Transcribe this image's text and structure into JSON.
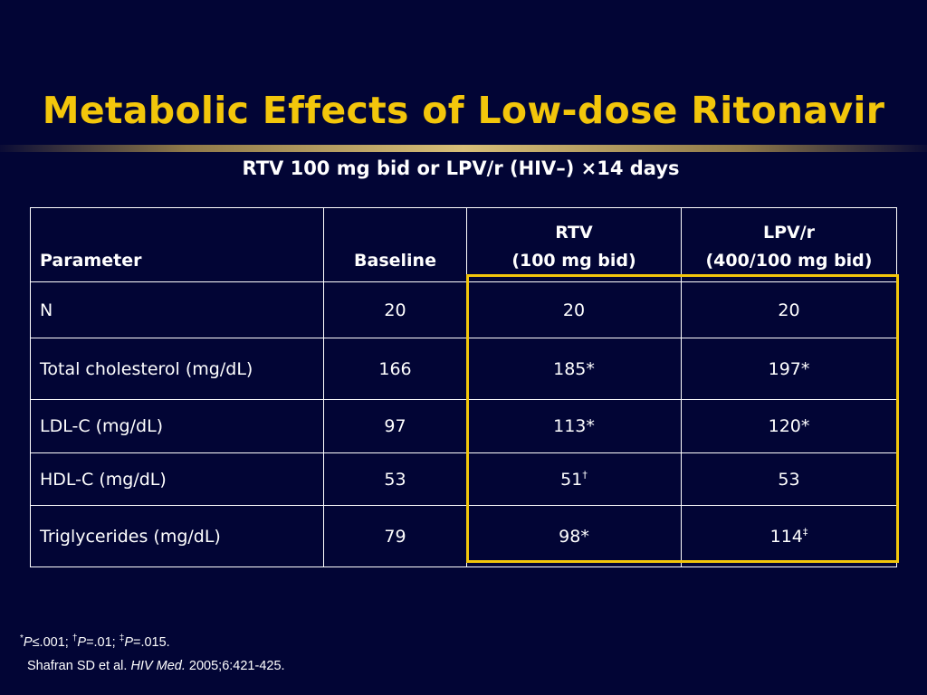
{
  "title": "Metabolic Effects of Low-dose Ritonavir",
  "subtitle": "RTV 100 mg bid or LPV/r (HIV–) ×14 days",
  "table": {
    "headers": {
      "parameter": "Parameter",
      "baseline": "Baseline",
      "rtv_line1": "RTV",
      "rtv_line2": "(100 mg bid)",
      "lpv_line1": "LPV/r",
      "lpv_line2": "(400/100 mg bid)"
    },
    "rows": [
      {
        "parameter": "N",
        "baseline": "20",
        "rtv": "20",
        "rtv_mark": "",
        "lpv": "20",
        "lpv_mark": ""
      },
      {
        "parameter": "Total cholesterol (mg/dL)",
        "baseline": "166",
        "rtv": "185*",
        "rtv_mark": "",
        "lpv": "197*",
        "lpv_mark": ""
      },
      {
        "parameter": "LDL-C (mg/dL)",
        "baseline": "97",
        "rtv": "113*",
        "rtv_mark": "",
        "lpv": "120*",
        "lpv_mark": ""
      },
      {
        "parameter": "HDL-C (mg/dL)",
        "baseline": "53",
        "rtv": "51",
        "rtv_mark": "†",
        "lpv": "53",
        "lpv_mark": ""
      },
      {
        "parameter": "Triglycerides (mg/dL)",
        "baseline": "79",
        "rtv": "98*",
        "rtv_mark": "",
        "lpv": "114",
        "lpv_mark": "‡"
      }
    ]
  },
  "footnote": {
    "mark1": "*",
    "p_label": "P",
    "val1": "≤.001; ",
    "mark2": "†",
    "val2": "=.01; ",
    "mark3": "‡",
    "val3": "=.015."
  },
  "citation": {
    "authors": "Shafran SD et al. ",
    "journal": "HIV Med.",
    "details": " 2005;6:421-425."
  },
  "colors": {
    "background": "#020535",
    "title": "#f3c60b",
    "highlight": "#f3c60b",
    "text": "#ffffff"
  }
}
